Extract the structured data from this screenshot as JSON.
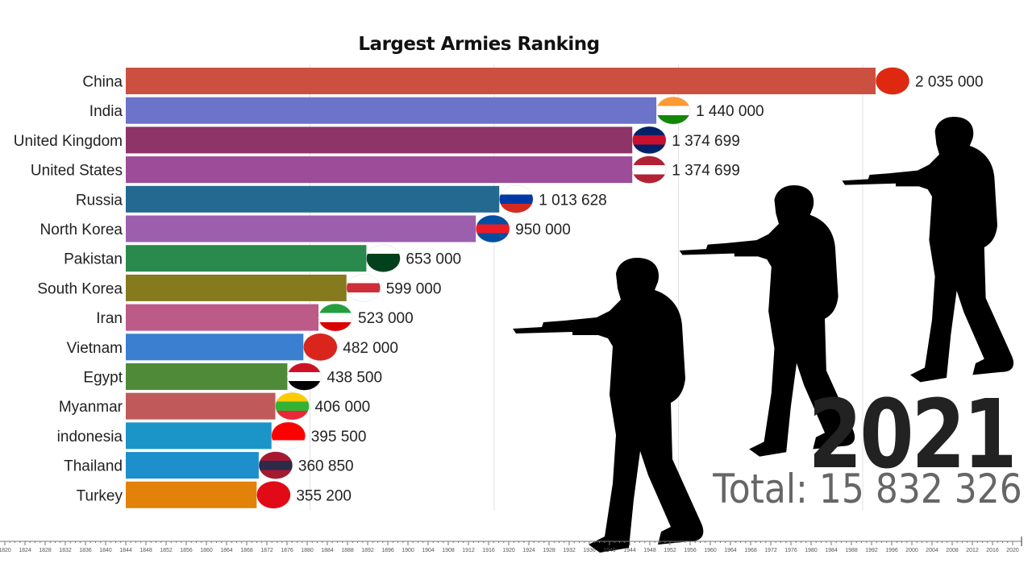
{
  "chart_data": {
    "type": "bar",
    "orientation": "horizontal",
    "title": "Largest Armies Ranking",
    "categories": [
      "China",
      "India",
      "United Kingdom",
      "United States",
      "Russia",
      "North Korea",
      "Pakistan",
      "South Korea",
      "Iran",
      "Vietnam",
      "Egypt",
      "Myanmar",
      "indonesia",
      "Thailand",
      "Turkey"
    ],
    "values": [
      2035000,
      1440000,
      1374699,
      1374699,
      1013628,
      950000,
      653000,
      599000,
      523000,
      482000,
      438500,
      406000,
      395500,
      360850,
      355200
    ],
    "value_labels": [
      "2 035 000",
      "1 440 000",
      "1 374 699",
      "1 374 699",
      "1 013 628",
      "950 000",
      "653 000",
      "599 000",
      "523 000",
      "482 000",
      "438 500",
      "406 000",
      "395 500",
      "360 850",
      "355 200"
    ],
    "colors": [
      "#cc5040",
      "#6b74c8",
      "#8e3468",
      "#9c4c98",
      "#236990",
      "#9b5fae",
      "#2a8a4e",
      "#857a1e",
      "#bc5a88",
      "#3b7fd0",
      "#4e8a38",
      "#c05a5a",
      "#1b95c8",
      "#1d8fcc",
      "#e3820a"
    ],
    "flags": [
      [
        "#de2910",
        "#de2910",
        "#de2910"
      ],
      [
        "#ff9933",
        "#ffffff",
        "#138808"
      ],
      [
        "#012169",
        "#c8102e",
        "#012169"
      ],
      [
        "#b22234",
        "#ffffff",
        "#b22234"
      ],
      [
        "#ffffff",
        "#0039a6",
        "#d52b1e"
      ],
      [
        "#024fa2",
        "#ed1c27",
        "#024fa2"
      ],
      [
        "#ffffff",
        "#01411c",
        "#01411c"
      ],
      [
        "#ffffff",
        "#cd2e3a",
        "#ffffff"
      ],
      [
        "#239f40",
        "#ffffff",
        "#da0000"
      ],
      [
        "#da251d",
        "#da251d",
        "#da251d"
      ],
      [
        "#ce1126",
        "#ffffff",
        "#000000"
      ],
      [
        "#fecb00",
        "#34b233",
        "#ea2839"
      ],
      [
        "#ff0000",
        "#ff0000",
        "#ffffff"
      ],
      [
        "#a51931",
        "#2d2a4a",
        "#a51931"
      ],
      [
        "#e30a17",
        "#e30a17",
        "#e30a17"
      ]
    ],
    "xlim": [
      0,
      2035000
    ],
    "grid": true,
    "grid_step": 500000
  },
  "year": "2021",
  "total": "Total: 15 832 326",
  "timeline": {
    "start": 1820,
    "end": 2020,
    "step": 4,
    "current": 2021
  }
}
